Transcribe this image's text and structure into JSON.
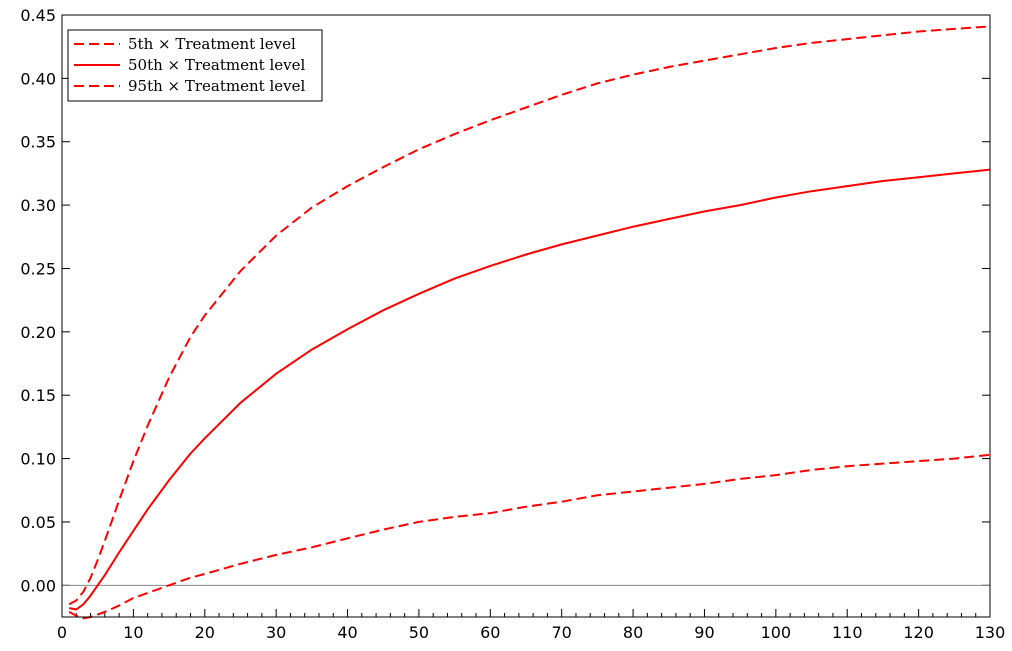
{
  "chart_data": {
    "type": "line",
    "title": "",
    "xlabel": "",
    "ylabel": "",
    "xlim": [
      0,
      130
    ],
    "ylim": [
      -0.025,
      0.45
    ],
    "x_ticks": [
      0,
      10,
      20,
      30,
      40,
      50,
      60,
      70,
      80,
      90,
      100,
      110,
      120,
      130
    ],
    "y_ticks": [
      0.0,
      0.05,
      0.1,
      0.15,
      0.2,
      0.25,
      0.3,
      0.35,
      0.4,
      0.45
    ],
    "y_tick_labels": [
      "0.00",
      "0.05",
      "0.10",
      "0.15",
      "0.20",
      "0.25",
      "0.30",
      "0.35",
      "0.40",
      "0.45"
    ],
    "x_tick_labels": [
      "0",
      "10",
      "20",
      "30",
      "40",
      "50",
      "60",
      "70",
      "80",
      "90",
      "100",
      "110",
      "120",
      "130"
    ],
    "grid": false,
    "reference_line_y": 0,
    "legend": {
      "position": "top-left"
    },
    "color": "#ff0000",
    "series": [
      {
        "name": "5th × Treatment level",
        "style": "dashed",
        "x": [
          1,
          2,
          3,
          4,
          5,
          6,
          8,
          10,
          12,
          15,
          18,
          20,
          25,
          30,
          35,
          40,
          45,
          50,
          55,
          60,
          65,
          70,
          75,
          80,
          85,
          90,
          95,
          100,
          105,
          110,
          115,
          120,
          125,
          130
        ],
        "y": [
          -0.021,
          -0.024,
          -0.026,
          -0.025,
          -0.023,
          -0.021,
          -0.016,
          -0.01,
          -0.006,
          0.0,
          0.006,
          0.009,
          0.017,
          0.024,
          0.03,
          0.037,
          0.044,
          0.05,
          0.054,
          0.057,
          0.062,
          0.066,
          0.071,
          0.074,
          0.077,
          0.08,
          0.084,
          0.087,
          0.091,
          0.094,
          0.096,
          0.098,
          0.1,
          0.103
        ]
      },
      {
        "name": "50th × Treatment level",
        "style": "solid",
        "x": [
          1,
          2,
          3,
          4,
          5,
          6,
          8,
          10,
          12,
          15,
          18,
          20,
          25,
          30,
          35,
          40,
          45,
          50,
          55,
          60,
          65,
          70,
          75,
          80,
          85,
          90,
          95,
          100,
          105,
          110,
          115,
          120,
          125,
          130
        ],
        "y": [
          -0.018,
          -0.019,
          -0.015,
          -0.008,
          0.0,
          0.008,
          0.026,
          0.043,
          0.06,
          0.083,
          0.104,
          0.116,
          0.144,
          0.167,
          0.186,
          0.202,
          0.217,
          0.23,
          0.242,
          0.252,
          0.261,
          0.269,
          0.276,
          0.283,
          0.289,
          0.295,
          0.3,
          0.306,
          0.311,
          0.315,
          0.319,
          0.322,
          0.325,
          0.328
        ]
      },
      {
        "name": "95th × Treatment level",
        "style": "dashed",
        "x": [
          1,
          2,
          3,
          4,
          5,
          6,
          8,
          10,
          12,
          15,
          18,
          20,
          25,
          30,
          35,
          40,
          45,
          50,
          55,
          60,
          65,
          70,
          75,
          80,
          85,
          90,
          95,
          100,
          105,
          110,
          115,
          120,
          125,
          130
        ],
        "y": [
          -0.015,
          -0.012,
          -0.005,
          0.006,
          0.02,
          0.035,
          0.067,
          0.098,
          0.126,
          0.164,
          0.196,
          0.213,
          0.248,
          0.276,
          0.298,
          0.315,
          0.33,
          0.344,
          0.356,
          0.367,
          0.377,
          0.387,
          0.396,
          0.403,
          0.409,
          0.414,
          0.419,
          0.424,
          0.428,
          0.431,
          0.434,
          0.437,
          0.439,
          0.441
        ]
      }
    ]
  }
}
